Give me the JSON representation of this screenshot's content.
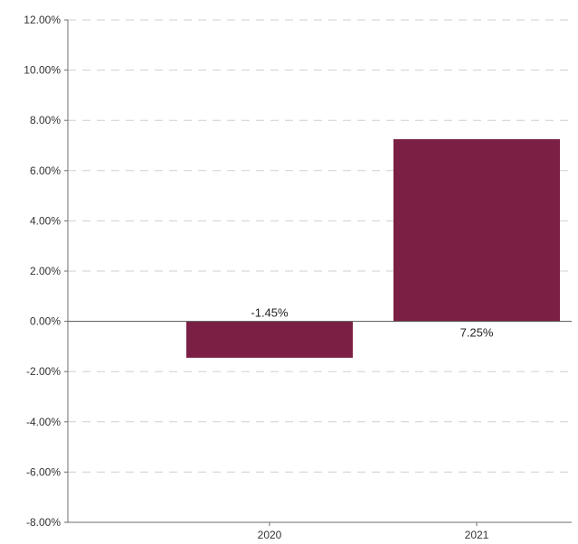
{
  "chart_data": {
    "type": "bar",
    "categories": [
      "2020",
      "2021"
    ],
    "values": [
      -1.45,
      7.25
    ],
    "data_labels": [
      "-1.45%",
      "7.25%"
    ],
    "ylim": [
      -8,
      12
    ],
    "ytick_values": [
      -8,
      -6,
      -4,
      -2,
      0,
      2,
      4,
      6,
      8,
      10,
      12
    ],
    "ytick_labels": [
      "-8.00%",
      "-6.00%",
      "-4.00%",
      "-2.00%",
      "0.00%",
      "2.00%",
      "4.00%",
      "6.00%",
      "8.00%",
      "10.00%",
      "12.00%"
    ],
    "grid": true,
    "legend": "none",
    "bar_color": "#7b1f45"
  }
}
